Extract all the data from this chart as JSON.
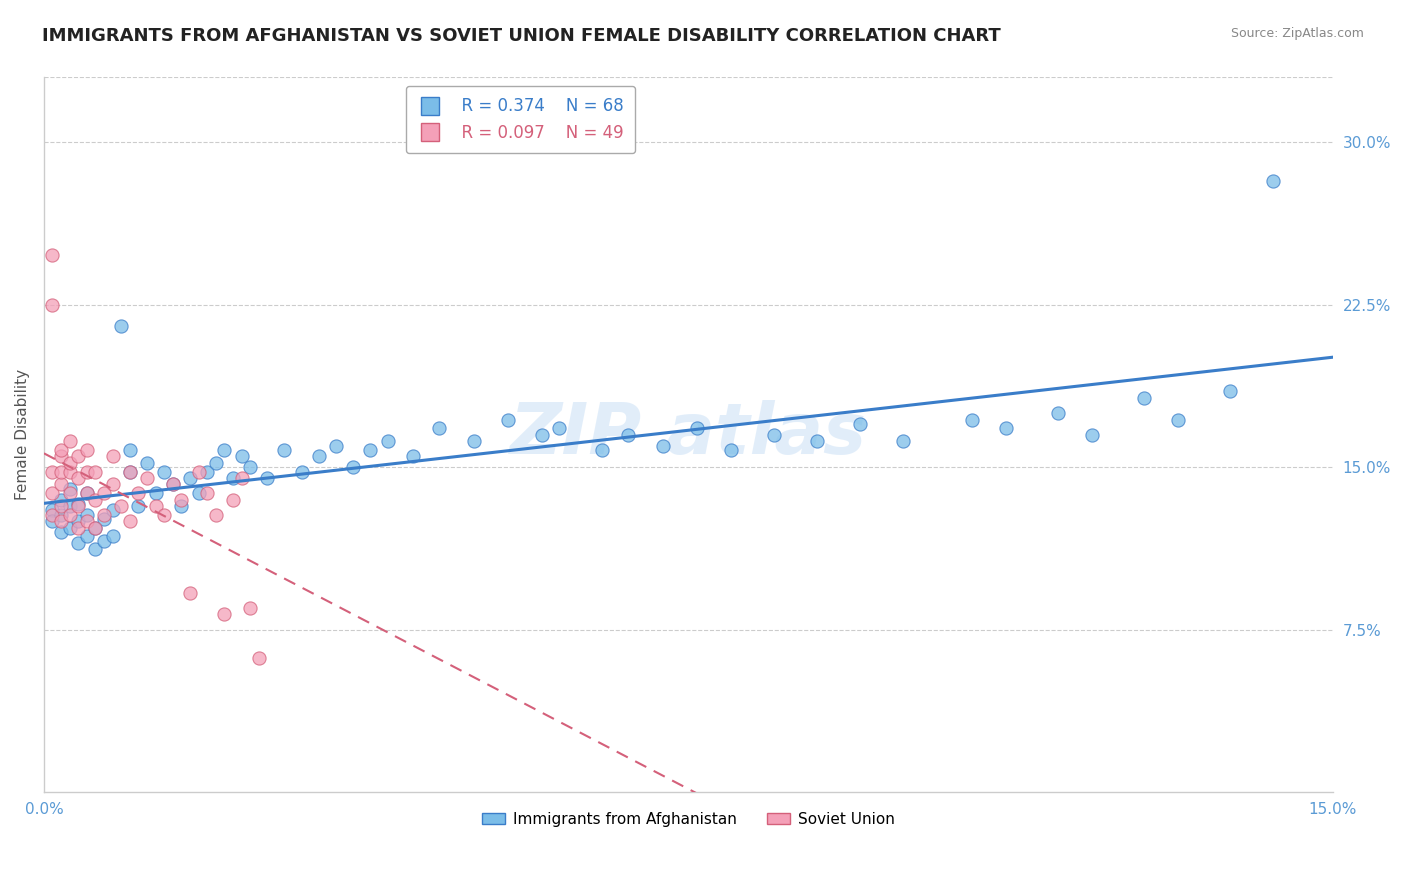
{
  "title": "IMMIGRANTS FROM AFGHANISTAN VS SOVIET UNION FEMALE DISABILITY CORRELATION CHART",
  "source": "Source: ZipAtlas.com",
  "ylabel": "Female Disability",
  "xlim": [
    0.0,
    0.15
  ],
  "ylim": [
    0.0,
    0.33
  ],
  "yticks": [
    0.075,
    0.15,
    0.225,
    0.3
  ],
  "ytick_labels": [
    "7.5%",
    "15.0%",
    "22.5%",
    "30.0%"
  ],
  "xticks": [
    0.0,
    0.15
  ],
  "xtick_labels": [
    "0.0%",
    "15.0%"
  ],
  "legend_r1": "R = 0.374",
  "legend_n1": "N = 68",
  "legend_r2": "R = 0.097",
  "legend_n2": "N = 49",
  "legend_label1": "Immigrants from Afghanistan",
  "legend_label2": "Soviet Union",
  "color_afghanistan": "#7bbde8",
  "color_soviet": "#f4a0b8",
  "color_trend_afghanistan": "#3a7dc9",
  "color_trend_soviet": "#d4607a",
  "background_color": "#ffffff",
  "afghanistan_x": [
    0.001,
    0.001,
    0.002,
    0.002,
    0.002,
    0.003,
    0.003,
    0.003,
    0.004,
    0.004,
    0.004,
    0.005,
    0.005,
    0.005,
    0.006,
    0.006,
    0.007,
    0.007,
    0.008,
    0.008,
    0.009,
    0.01,
    0.01,
    0.011,
    0.012,
    0.013,
    0.014,
    0.015,
    0.016,
    0.017,
    0.018,
    0.019,
    0.02,
    0.021,
    0.022,
    0.023,
    0.024,
    0.026,
    0.028,
    0.03,
    0.032,
    0.034,
    0.036,
    0.038,
    0.04,
    0.043,
    0.046,
    0.05,
    0.054,
    0.058,
    0.06,
    0.065,
    0.068,
    0.072,
    0.076,
    0.08,
    0.085,
    0.09,
    0.095,
    0.1,
    0.108,
    0.112,
    0.118,
    0.122,
    0.128,
    0.132,
    0.138,
    0.143
  ],
  "afghanistan_y": [
    0.13,
    0.125,
    0.12,
    0.135,
    0.128,
    0.122,
    0.132,
    0.14,
    0.115,
    0.125,
    0.133,
    0.118,
    0.128,
    0.138,
    0.112,
    0.122,
    0.116,
    0.126,
    0.118,
    0.13,
    0.215,
    0.148,
    0.158,
    0.132,
    0.152,
    0.138,
    0.148,
    0.142,
    0.132,
    0.145,
    0.138,
    0.148,
    0.152,
    0.158,
    0.145,
    0.155,
    0.15,
    0.145,
    0.158,
    0.148,
    0.155,
    0.16,
    0.15,
    0.158,
    0.162,
    0.155,
    0.168,
    0.162,
    0.172,
    0.165,
    0.168,
    0.158,
    0.165,
    0.16,
    0.168,
    0.158,
    0.165,
    0.162,
    0.17,
    0.162,
    0.172,
    0.168,
    0.175,
    0.165,
    0.182,
    0.172,
    0.185,
    0.282
  ],
  "soviet_x": [
    0.001,
    0.001,
    0.001,
    0.001,
    0.001,
    0.002,
    0.002,
    0.002,
    0.002,
    0.002,
    0.002,
    0.003,
    0.003,
    0.003,
    0.003,
    0.003,
    0.004,
    0.004,
    0.004,
    0.004,
    0.005,
    0.005,
    0.005,
    0.005,
    0.006,
    0.006,
    0.006,
    0.007,
    0.007,
    0.008,
    0.008,
    0.009,
    0.01,
    0.01,
    0.011,
    0.012,
    0.013,
    0.014,
    0.015,
    0.016,
    0.017,
    0.018,
    0.019,
    0.02,
    0.021,
    0.022,
    0.023,
    0.024,
    0.025
  ],
  "soviet_y": [
    0.248,
    0.225,
    0.148,
    0.138,
    0.128,
    0.155,
    0.142,
    0.132,
    0.148,
    0.158,
    0.125,
    0.162,
    0.148,
    0.138,
    0.152,
    0.128,
    0.145,
    0.132,
    0.155,
    0.122,
    0.148,
    0.138,
    0.125,
    0.158,
    0.135,
    0.148,
    0.122,
    0.138,
    0.128,
    0.142,
    0.155,
    0.132,
    0.148,
    0.125,
    0.138,
    0.145,
    0.132,
    0.128,
    0.142,
    0.135,
    0.092,
    0.148,
    0.138,
    0.128,
    0.082,
    0.135,
    0.145,
    0.085,
    0.062
  ],
  "title_fontsize": 13,
  "tick_fontsize": 11,
  "axis_label_fontsize": 11
}
